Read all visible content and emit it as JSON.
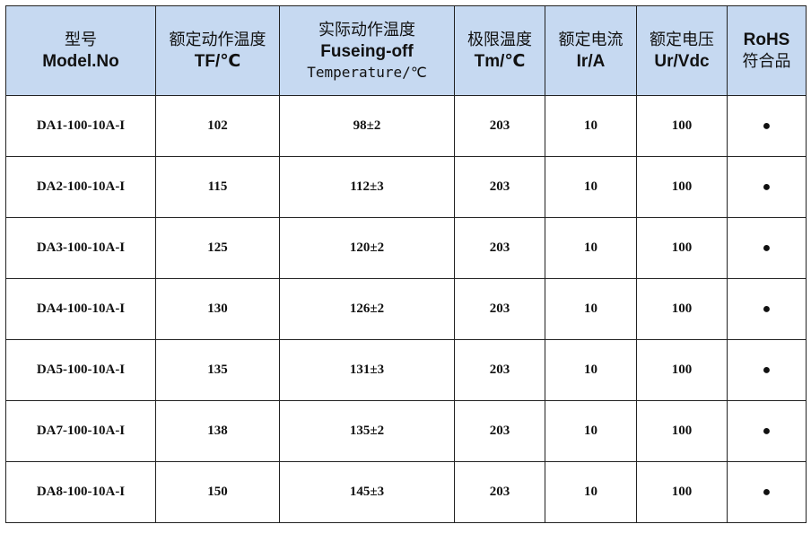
{
  "header": [
    [
      "型号",
      "Model.No"
    ],
    [
      "额定动作温度",
      "TF/℃"
    ],
    [
      "实际动作温度",
      "Fuseing-off",
      "Temperature/℃"
    ],
    [
      "极限温度",
      "Tm/℃"
    ],
    [
      "额定电流",
      "Ir/A"
    ],
    [
      "额定电压",
      "Ur/Vdc"
    ],
    [
      "RoHS",
      "符合品"
    ]
  ],
  "rows": [
    [
      "DA1-100-10A-I",
      102,
      "98±2",
      203,
      10,
      100,
      "●"
    ],
    [
      "DA2-100-10A-I",
      115,
      "112±3",
      203,
      10,
      100,
      "●"
    ],
    [
      "DA3-100-10A-I",
      125,
      "120±2",
      203,
      10,
      100,
      "●"
    ],
    [
      "DA4-100-10A-I",
      130,
      "126±2",
      203,
      10,
      100,
      "●"
    ],
    [
      "DA5-100-10A-I",
      135,
      "131±3",
      203,
      10,
      100,
      "●"
    ],
    [
      "DA7-100-10A-I",
      138,
      "135±2",
      203,
      10,
      100,
      "●"
    ],
    [
      "DA8-100-10A-I",
      150,
      "145±3",
      203,
      10,
      100,
      "●"
    ]
  ]
}
